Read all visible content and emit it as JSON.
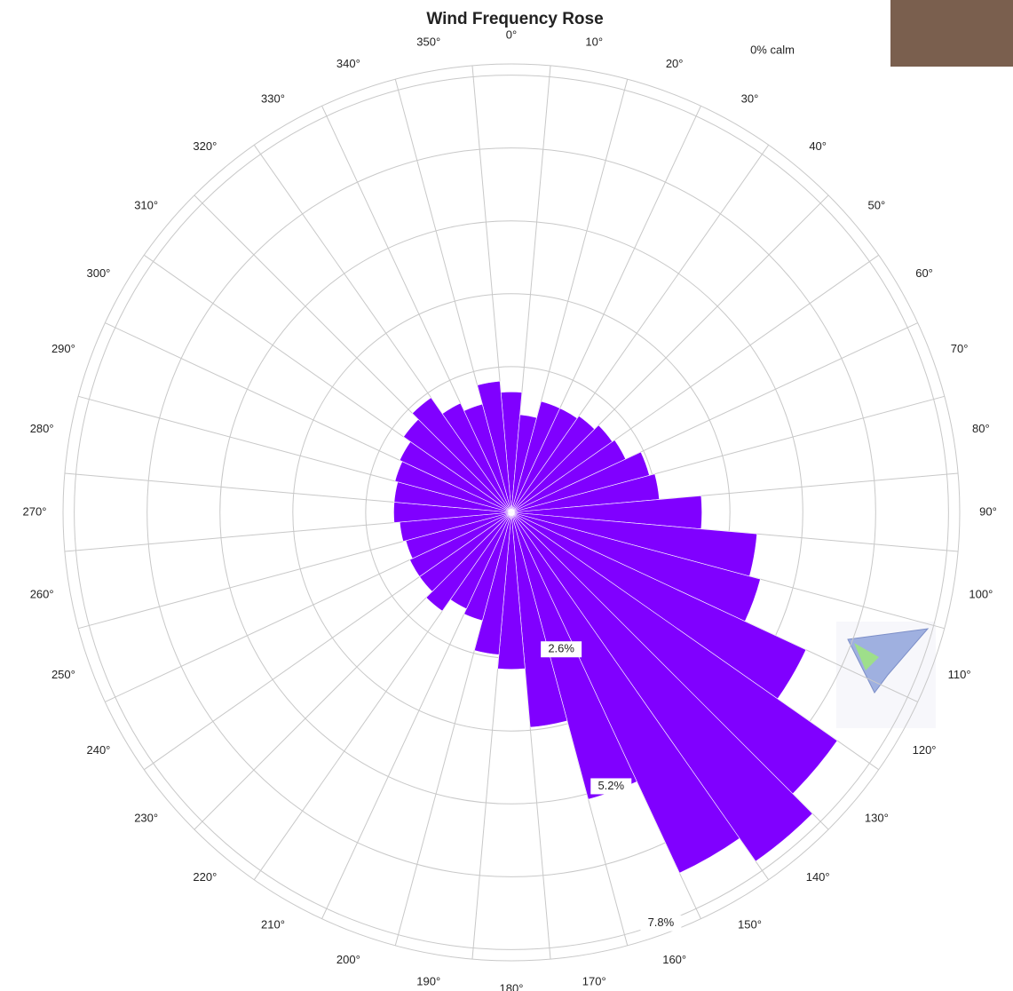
{
  "chart_data": {
    "type": "polar_bar",
    "title": "Wind Frequency Rose",
    "annotation": "0% calm",
    "color": "#8000ff",
    "categories": [
      "0°",
      "10°",
      "20°",
      "30°",
      "40°",
      "50°",
      "60°",
      "70°",
      "80°",
      "90°",
      "100°",
      "110°",
      "120°",
      "130°",
      "140°",
      "150°",
      "160°",
      "170°",
      "180°",
      "190°",
      "200°",
      "210°",
      "220°",
      "230°",
      "240°",
      "250°",
      "260°",
      "270°",
      "280°",
      "290°",
      "300°",
      "310°",
      "320°",
      "330°",
      "340°",
      "350°"
    ],
    "angles": [
      0,
      10,
      20,
      30,
      40,
      50,
      60,
      70,
      80,
      90,
      100,
      110,
      120,
      130,
      140,
      150,
      160,
      170,
      180,
      190,
      200,
      210,
      220,
      230,
      240,
      250,
      260,
      270,
      280,
      290,
      300,
      310,
      320,
      330,
      340,
      350
    ],
    "values": [
      2.15,
      1.75,
      2.05,
      2.05,
      2.1,
      2.2,
      2.25,
      2.55,
      2.65,
      3.4,
      4.4,
      4.6,
      5.8,
      7.1,
      7.6,
      7.1,
      5.3,
      3.85,
      2.8,
      2.55,
      2.0,
      1.9,
      2.15,
      2.0,
      2.0,
      1.95,
      2.0,
      2.1,
      2.1,
      2.15,
      2.2,
      2.35,
      2.5,
      2.15,
      2.0,
      2.35
    ],
    "rlim": [
      0,
      8
    ],
    "rticks": [
      1.3,
      2.6,
      3.9,
      5.2,
      6.5,
      7.8
    ],
    "rtick_labels": [
      {
        "value": 2.6,
        "label": "2.6%"
      },
      {
        "value": 5.2,
        "label": "5.2%"
      },
      {
        "value": 7.8,
        "label": "7.8%"
      }
    ],
    "grid": true
  }
}
